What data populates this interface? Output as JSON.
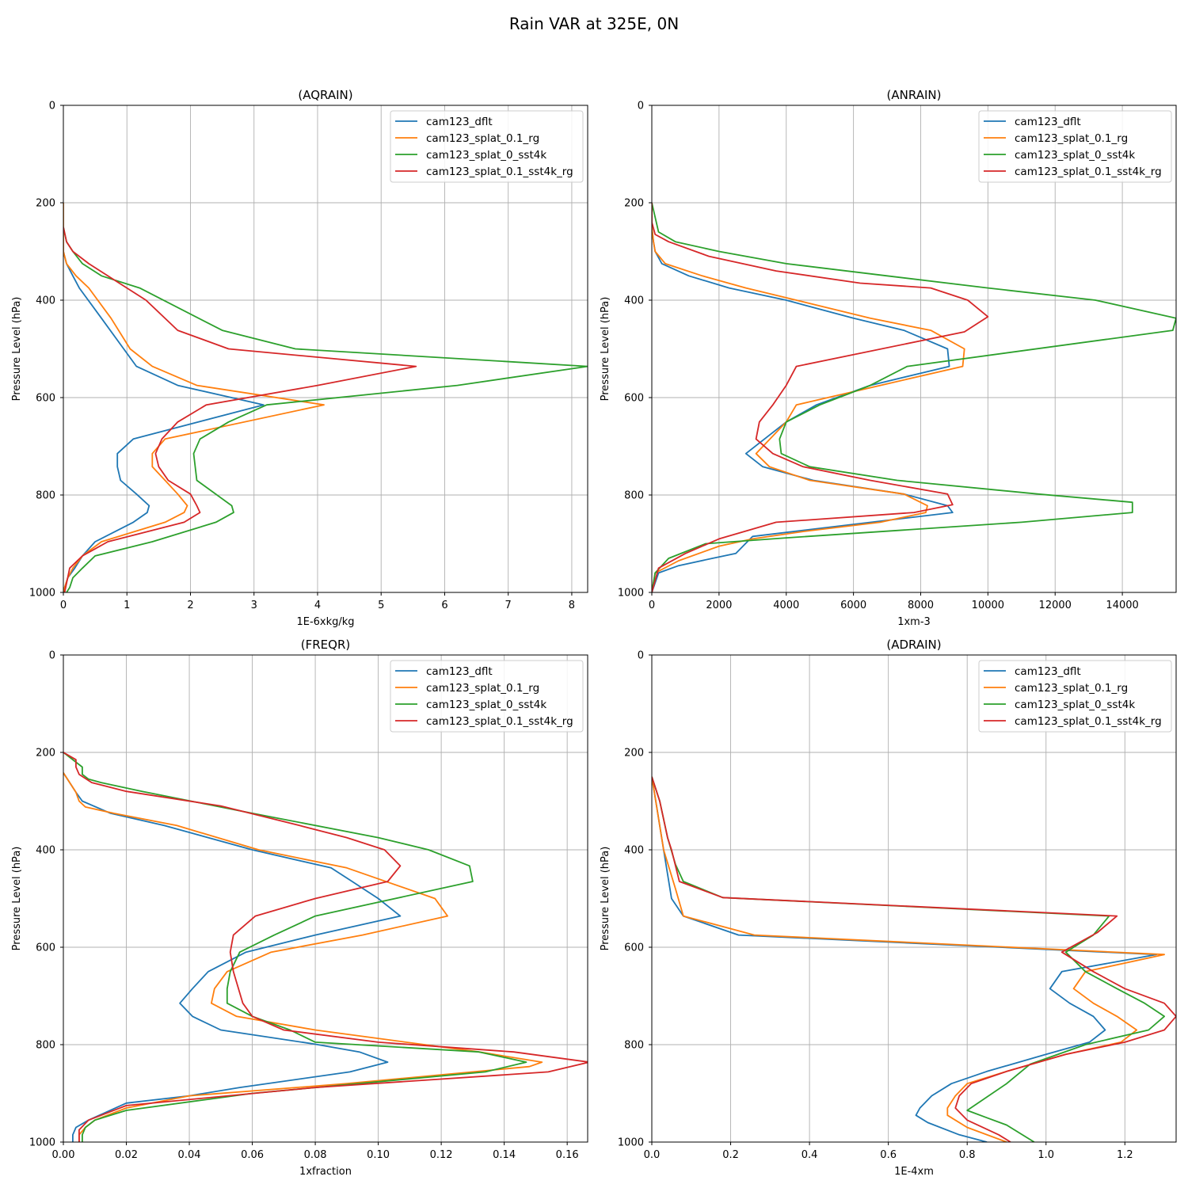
{
  "figure": {
    "title": "Rain VAR at 325E, 0N"
  },
  "colors": {
    "cam123_dflt": "#1f77b4",
    "cam123_splat_0.1_rg": "#ff7f0e",
    "cam123_splat_0_sst4k": "#2ca02c",
    "cam123_splat_0.1_sst4k_rg": "#d62728"
  },
  "legend": [
    "cam123_dflt",
    "cam123_splat_0.1_rg",
    "cam123_splat_0_sst4k",
    "cam123_splat_0.1_sst4k_rg"
  ],
  "chart_data": [
    {
      "type": "line",
      "title": "(AQRAIN)",
      "xlabel": "1E-6xkg/kg",
      "ylabel": "Pressure Level (hPa)",
      "xlim": [
        0,
        8.25
      ],
      "ylim": [
        1000,
        0
      ],
      "xticks": [
        0,
        1,
        2,
        3,
        4,
        5,
        6,
        7,
        8
      ],
      "xtick_labels": [
        "0",
        "1",
        "2",
        "3",
        "4",
        "5",
        "6",
        "7",
        "8"
      ],
      "yticks": [
        0,
        200,
        400,
        600,
        800,
        1000
      ],
      "ytick_labels": [
        "0",
        "200",
        "400",
        "600",
        "800",
        "1000"
      ],
      "legend_position": "top-right",
      "series": [
        {
          "name": "cam123_dflt",
          "x": [
            0,
            0,
            0.05,
            0.15,
            0.25,
            0.6,
            0.95,
            1.15,
            1.8,
            3.15,
            1.1,
            0.85,
            0.85,
            0.9,
            1.15,
            1.35,
            1.32,
            1.1,
            0.5,
            0.3,
            0.18,
            0.07,
            0.02,
            0
          ],
          "y": [
            200,
            300,
            325,
            350,
            375,
            437,
            500,
            536,
            575,
            615,
            685,
            715,
            742,
            770,
            798,
            822,
            836,
            856,
            896,
            925,
            950,
            970,
            990,
            1000
          ]
        },
        {
          "name": "cam123_splat_0.1_rg",
          "x": [
            0,
            0,
            0.05,
            0.2,
            0.4,
            0.75,
            1.05,
            1.4,
            2.1,
            4.1,
            1.6,
            1.4,
            1.4,
            1.6,
            1.8,
            1.95,
            1.9,
            1.6,
            0.6,
            0.3,
            0.15,
            0.07,
            0.02,
            0
          ],
          "y": [
            200,
            300,
            325,
            350,
            375,
            437,
            500,
            536,
            575,
            615,
            685,
            715,
            742,
            770,
            798,
            822,
            836,
            856,
            896,
            925,
            950,
            970,
            990,
            1000
          ]
        },
        {
          "name": "cam123_splat_0_sst4k",
          "x": [
            0,
            0.05,
            0.15,
            0.3,
            0.6,
            1.2,
            2.5,
            3.65,
            8.25,
            6.2,
            3.2,
            2.6,
            2.15,
            2.05,
            2.1,
            2.65,
            2.68,
            2.4,
            1.4,
            0.5,
            0.3,
            0.15,
            0.1,
            0.05
          ],
          "y": [
            250,
            280,
            300,
            325,
            350,
            375,
            462,
            500,
            536,
            575,
            615,
            650,
            685,
            715,
            770,
            822,
            836,
            856,
            896,
            925,
            950,
            970,
            990,
            1000
          ]
        },
        {
          "name": "cam123_splat_0.1_sst4k_rg",
          "x": [
            0,
            0.05,
            0.15,
            0.4,
            1.0,
            1.3,
            1.8,
            2.6,
            5.55,
            4.0,
            2.25,
            1.8,
            1.55,
            1.45,
            1.5,
            1.65,
            2.0,
            2.1,
            2.15,
            1.9,
            0.7,
            0.3,
            0.1,
            0.02
          ],
          "y": [
            250,
            280,
            300,
            325,
            375,
            400,
            462,
            500,
            536,
            575,
            615,
            650,
            685,
            715,
            742,
            770,
            798,
            822,
            836,
            856,
            896,
            925,
            950,
            1000
          ]
        }
      ]
    },
    {
      "type": "line",
      "title": "(ANRAIN)",
      "xlabel": "1xm-3",
      "ylabel": "Pressure Level (hPa)",
      "xlim": [
        0,
        15600
      ],
      "ylim": [
        1000,
        0
      ],
      "xticks": [
        0,
        2000,
        4000,
        6000,
        8000,
        10000,
        12000,
        14000
      ],
      "xtick_labels": [
        "0",
        "2000",
        "4000",
        "6000",
        "8000",
        "10000",
        "12000",
        "14000"
      ],
      "yticks": [
        0,
        200,
        400,
        600,
        800,
        1000
      ],
      "ytick_labels": [
        "0",
        "200",
        "400",
        "600",
        "800",
        "1000"
      ],
      "legend_position": "top-right",
      "series": [
        {
          "name": "cam123_dflt",
          "x": [
            0,
            0,
            50,
            100,
            300,
            1100,
            2300,
            4000,
            6000,
            7500,
            8800,
            8850,
            6500,
            4900,
            4000,
            2800,
            3300,
            4800,
            7500,
            8800,
            8950,
            3000,
            2500,
            1800,
            800,
            200,
            0
          ],
          "y": [
            200,
            250,
            280,
            300,
            325,
            350,
            375,
            400,
            437,
            462,
            500,
            536,
            575,
            615,
            650,
            715,
            742,
            770,
            798,
            822,
            836,
            885,
            920,
            930,
            945,
            960,
            1000
          ]
        },
        {
          "name": "cam123_splat_0.1_rg",
          "x": [
            0,
            0,
            50,
            100,
            400,
            1500,
            2800,
            4300,
            6500,
            8300,
            9300,
            9250,
            6800,
            4300,
            4000,
            3100,
            3500,
            4700,
            7500,
            8200,
            8150,
            6800,
            4500,
            3000,
            2000,
            800,
            100,
            0
          ],
          "y": [
            200,
            250,
            280,
            300,
            325,
            350,
            375,
            400,
            437,
            462,
            500,
            536,
            575,
            615,
            650,
            715,
            742,
            770,
            798,
            822,
            836,
            856,
            875,
            890,
            905,
            935,
            960,
            1000
          ]
        },
        {
          "name": "cam123_splat_0_sst4k",
          "x": [
            0,
            200,
            700,
            2000,
            4000,
            7000,
            10000,
            13200,
            15600,
            15500,
            7600,
            6500,
            5000,
            4000,
            3800,
            3850,
            4700,
            7300,
            11500,
            14300,
            14300,
            11000,
            4000,
            1600,
            500,
            100,
            0
          ],
          "y": [
            200,
            260,
            280,
            300,
            325,
            350,
            375,
            400,
            437,
            462,
            536,
            575,
            615,
            650,
            685,
            715,
            742,
            770,
            798,
            815,
            836,
            856,
            888,
            900,
            930,
            960,
            1000
          ]
        },
        {
          "name": "cam123_splat_0.1_sst4k_rg",
          "x": [
            0,
            0,
            100,
            500,
            1700,
            3700,
            6200,
            8300,
            9400,
            10000,
            9300,
            4300,
            4000,
            3600,
            3200,
            3100,
            3600,
            4500,
            6500,
            8800,
            8950,
            7800,
            3700,
            2000,
            1000,
            200,
            0
          ],
          "y": [
            200,
            240,
            265,
            280,
            310,
            340,
            365,
            375,
            400,
            434,
            465,
            536,
            575,
            615,
            650,
            685,
            715,
            742,
            770,
            798,
            820,
            836,
            856,
            890,
            920,
            950,
            1000
          ]
        }
      ]
    },
    {
      "type": "line",
      "title": "(FREQR)",
      "xlabel": "1xfraction",
      "ylabel": "Pressure Level (hPa)",
      "xlim": [
        0,
        0.1665
      ],
      "ylim": [
        1000,
        0
      ],
      "xticks": [
        0,
        0.02,
        0.04,
        0.06,
        0.08,
        0.1,
        0.12,
        0.14,
        0.16
      ],
      "xtick_labels": [
        "0.00",
        "0.02",
        "0.04",
        "0.06",
        "0.08",
        "0.10",
        "0.12",
        "0.14",
        "0.16"
      ],
      "yticks": [
        0,
        200,
        400,
        600,
        800,
        1000
      ],
      "ytick_labels": [
        "0",
        "200",
        "400",
        "600",
        "800",
        "1000"
      ],
      "legend_position": "top-right",
      "series": [
        {
          "name": "cam123_dflt",
          "x": [
            0,
            0.002,
            0.004,
            0.006,
            0.015,
            0.032,
            0.06,
            0.085,
            0.091,
            0.1,
            0.107,
            0.08,
            0.058,
            0.046,
            0.041,
            0.037,
            0.041,
            0.05,
            0.079,
            0.094,
            0.103,
            0.091,
            0.056,
            0.04,
            0.02,
            0.008,
            0.004,
            0.003,
            0.003
          ],
          "y": [
            242,
            262,
            282,
            300,
            325,
            350,
            400,
            437,
            462,
            500,
            536,
            575,
            610,
            650,
            685,
            715,
            742,
            770,
            798,
            815,
            836,
            856,
            888,
            905,
            920,
            955,
            970,
            985,
            1000
          ]
        },
        {
          "name": "cam123_splat_0.1_rg",
          "x": [
            0,
            0.002,
            0.004,
            0.005,
            0.007,
            0.016,
            0.036,
            0.062,
            0.09,
            0.118,
            0.122,
            0.095,
            0.066,
            0.052,
            0.048,
            0.047,
            0.055,
            0.08,
            0.132,
            0.152,
            0.148,
            0.09,
            0.04,
            0.02,
            0.01,
            0.007,
            0.005,
            0.005
          ],
          "y": [
            242,
            262,
            282,
            300,
            312,
            325,
            350,
            400,
            437,
            500,
            536,
            575,
            610,
            650,
            685,
            715,
            742,
            770,
            815,
            836,
            845,
            880,
            905,
            930,
            955,
            970,
            985,
            1000
          ]
        },
        {
          "name": "cam123_splat_0_sst4k",
          "x": [
            0,
            0.006,
            0.006,
            0.008,
            0.012,
            0.025,
            0.06,
            0.1,
            0.116,
            0.129,
            0.13,
            0.08,
            0.067,
            0.056,
            0.053,
            0.052,
            0.052,
            0.06,
            0.072,
            0.08,
            0.132,
            0.147,
            0.134,
            0.06,
            0.02,
            0.01,
            0.007,
            0.006,
            0.006
          ],
          "y": [
            200,
            230,
            245,
            255,
            262,
            280,
            325,
            375,
            400,
            433,
            465,
            536,
            575,
            610,
            650,
            685,
            715,
            742,
            770,
            795,
            815,
            836,
            856,
            900,
            935,
            955,
            970,
            985,
            1000
          ]
        },
        {
          "name": "cam123_splat_0.1_sst4k_rg",
          "x": [
            0,
            0.004,
            0.004,
            0.005,
            0.009,
            0.02,
            0.05,
            0.075,
            0.09,
            0.102,
            0.107,
            0.103,
            0.08,
            0.061,
            0.054,
            0.053,
            0.054,
            0.057,
            0.06,
            0.07,
            0.1,
            0.143,
            0.167,
            0.154,
            0.08,
            0.02,
            0.008,
            0.005,
            0.005
          ],
          "y": [
            200,
            215,
            230,
            245,
            262,
            280,
            310,
            350,
            375,
            400,
            433,
            465,
            500,
            536,
            575,
            610,
            650,
            715,
            742,
            770,
            795,
            815,
            836,
            856,
            888,
            925,
            955,
            975,
            1000
          ]
        }
      ]
    },
    {
      "type": "line",
      "title": "(ADRAIN)",
      "xlabel": "1E-4xm",
      "ylabel": "Pressure Level (hPa)",
      "xlim": [
        0,
        1.33
      ],
      "ylim": [
        1000,
        0
      ],
      "xticks": [
        0,
        0.2,
        0.4,
        0.6,
        0.8,
        1.0,
        1.2
      ],
      "xtick_labels": [
        "0.0",
        "0.2",
        "0.4",
        "0.6",
        "0.8",
        "1.0",
        "1.2"
      ],
      "yticks": [
        0,
        200,
        400,
        600,
        800,
        1000
      ],
      "ytick_labels": [
        "0",
        "200",
        "400",
        "600",
        "800",
        "1000"
      ],
      "legend_position": "top-right",
      "series": [
        {
          "name": "cam123_dflt",
          "x": [
            0,
            0.01,
            0.03,
            0.05,
            0.08,
            0.22,
            1.28,
            1.04,
            1.01,
            1.06,
            1.12,
            1.15,
            1.11,
            1.0,
            0.85,
            0.76,
            0.71,
            0.68,
            0.67,
            0.7,
            0.78,
            0.85
          ],
          "y": [
            250,
            300,
            400,
            500,
            536,
            575,
            615,
            650,
            685,
            715,
            742,
            770,
            795,
            820,
            855,
            880,
            905,
            930,
            945,
            960,
            985,
            1000
          ]
        },
        {
          "name": "cam123_splat_0.1_rg",
          "x": [
            0,
            0.01,
            0.03,
            0.06,
            0.08,
            0.26,
            1.3,
            1.1,
            1.07,
            1.12,
            1.18,
            1.23,
            1.19,
            1.05,
            0.9,
            0.8,
            0.77,
            0.75,
            0.75,
            0.8,
            0.9
          ],
          "y": [
            250,
            300,
            400,
            480,
            536,
            575,
            615,
            650,
            685,
            715,
            742,
            770,
            795,
            820,
            855,
            880,
            905,
            930,
            945,
            970,
            1000
          ]
        },
        {
          "name": "cam123_splat_0_sst4k",
          "x": [
            0,
            0.02,
            0.04,
            0.06,
            0.08,
            0.18,
            1.16,
            1.12,
            1.05,
            1.1,
            1.18,
            1.25,
            1.3,
            1.26,
            1.1,
            0.96,
            0.9,
            0.8,
            0.85,
            0.9,
            0.97
          ],
          "y": [
            250,
            300,
            375,
            430,
            465,
            498,
            536,
            575,
            610,
            650,
            685,
            715,
            742,
            770,
            800,
            840,
            880,
            935,
            950,
            965,
            1000
          ]
        },
        {
          "name": "cam123_splat_0.1_sst4k_rg",
          "x": [
            0,
            0.02,
            0.04,
            0.05,
            0.07,
            0.18,
            1.18,
            1.13,
            1.04,
            1.12,
            1.2,
            1.3,
            1.33,
            1.3,
            1.2,
            1.05,
            0.9,
            0.81,
            0.78,
            0.77,
            0.8,
            0.88,
            0.91
          ],
          "y": [
            250,
            300,
            375,
            400,
            465,
            498,
            536,
            570,
            610,
            650,
            685,
            715,
            742,
            770,
            795,
            820,
            855,
            880,
            905,
            930,
            955,
            985,
            1000
          ]
        }
      ]
    }
  ]
}
